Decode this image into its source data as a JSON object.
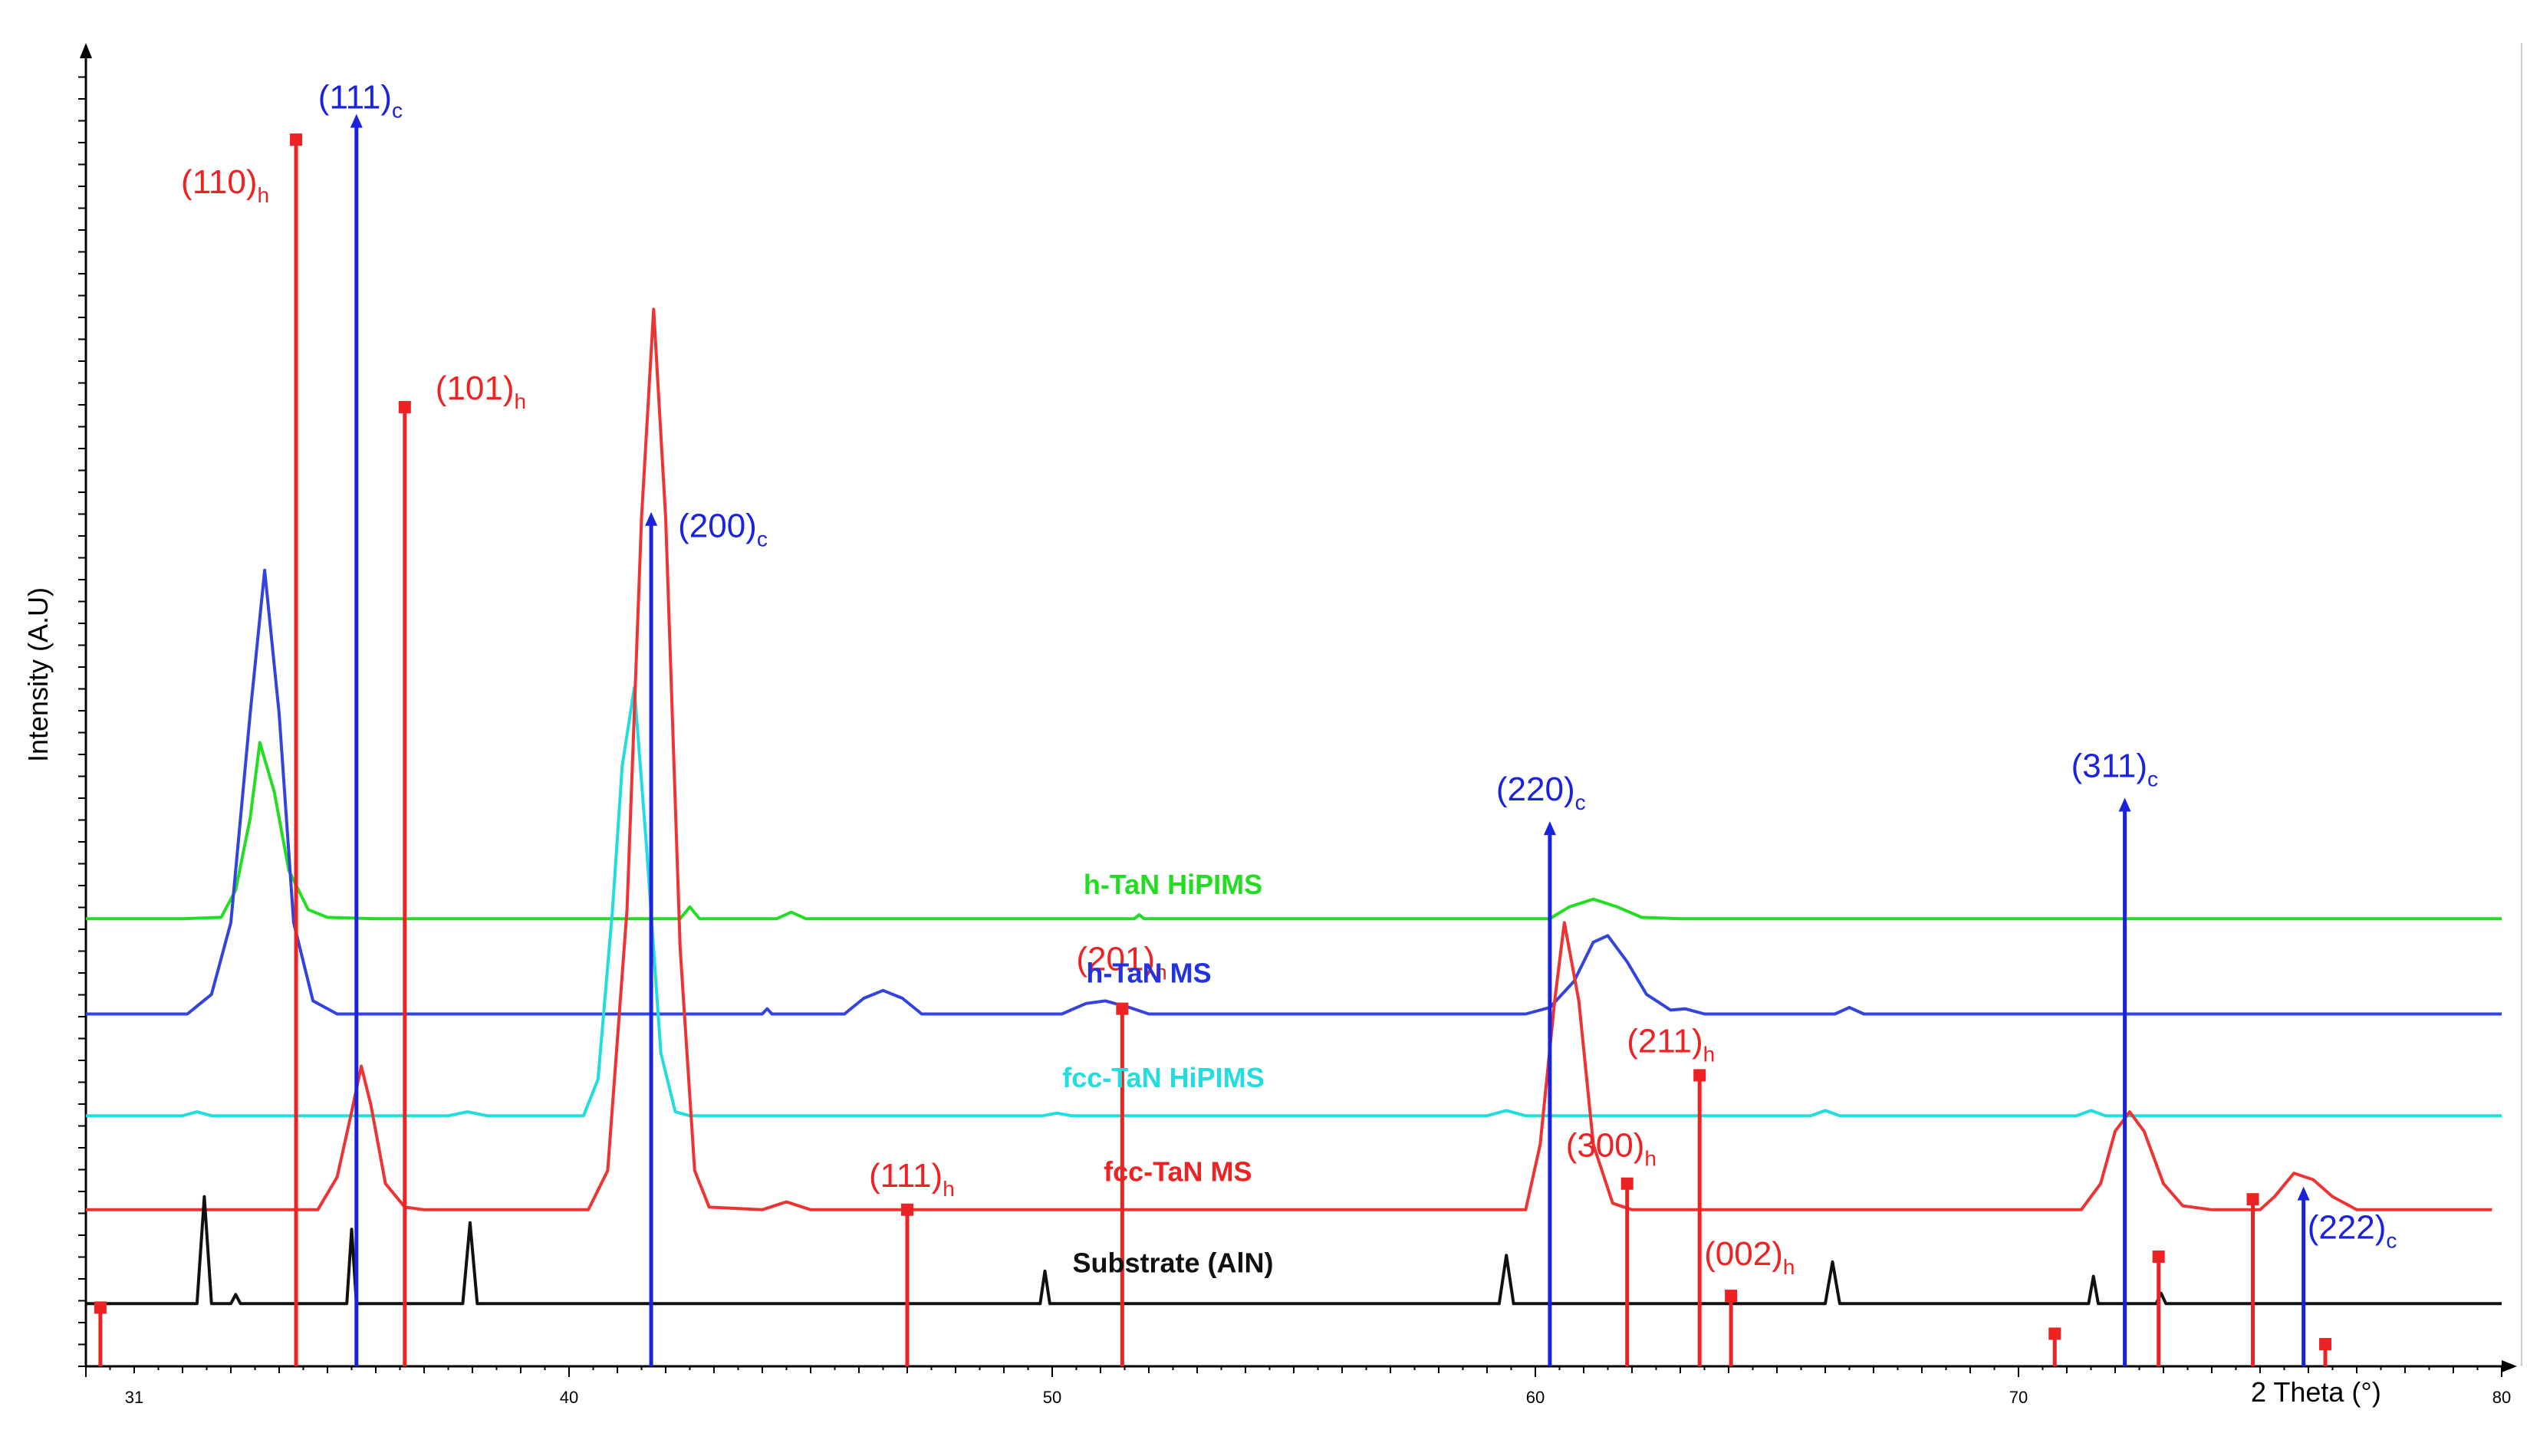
{
  "chart_data": {
    "type": "line",
    "title": "",
    "xlabel": "2 Theta (°)",
    "ylabel": "Intensity (A.U)",
    "xlim": [
      30,
      80
    ],
    "xticks": [
      31,
      40,
      50,
      60,
      70,
      80
    ],
    "ylim": [
      0,
      100
    ],
    "grid": false,
    "series": [
      {
        "name": "h-TaN HiPIMS",
        "color": "#22dd22",
        "points": [
          [
            30,
            34.3
          ],
          [
            32,
            34.3
          ],
          [
            32.8,
            34.4
          ],
          [
            33.1,
            36.5
          ],
          [
            33.4,
            42
          ],
          [
            33.6,
            47.8
          ],
          [
            33.9,
            44
          ],
          [
            34.2,
            38
          ],
          [
            34.6,
            35
          ],
          [
            35,
            34.4
          ],
          [
            36,
            34.3
          ],
          [
            42.3,
            34.3
          ],
          [
            42.5,
            35.2
          ],
          [
            42.7,
            34.3
          ],
          [
            44.3,
            34.3
          ],
          [
            44.6,
            34.8
          ],
          [
            44.9,
            34.3
          ],
          [
            51.7,
            34.3
          ],
          [
            51.8,
            34.6
          ],
          [
            51.9,
            34.3
          ],
          [
            60.3,
            34.3
          ],
          [
            60.7,
            35.2
          ],
          [
            61.2,
            35.8
          ],
          [
            61.7,
            35.2
          ],
          [
            62.2,
            34.4
          ],
          [
            63,
            34.3
          ],
          [
            80,
            34.3
          ]
        ]
      },
      {
        "name": "h-TaN MS",
        "color": "#3344dd",
        "points": [
          [
            30,
            27
          ],
          [
            32.1,
            27
          ],
          [
            32.6,
            28.5
          ],
          [
            33,
            34
          ],
          [
            33.4,
            50
          ],
          [
            33.7,
            61
          ],
          [
            34,
            50
          ],
          [
            34.3,
            34
          ],
          [
            34.7,
            28
          ],
          [
            35.2,
            27
          ],
          [
            44,
            27
          ],
          [
            44.1,
            27.4
          ],
          [
            44.2,
            27
          ],
          [
            45.7,
            27
          ],
          [
            46.1,
            28.2
          ],
          [
            46.5,
            28.8
          ],
          [
            46.9,
            28.2
          ],
          [
            47.3,
            27
          ],
          [
            50.2,
            27
          ],
          [
            50.7,
            27.8
          ],
          [
            51.1,
            28
          ],
          [
            51.6,
            27.5
          ],
          [
            52,
            27
          ],
          [
            59.8,
            27
          ],
          [
            60.3,
            27.5
          ],
          [
            60.8,
            29.5
          ],
          [
            61.2,
            32.5
          ],
          [
            61.5,
            33
          ],
          [
            61.9,
            31
          ],
          [
            62.3,
            28.5
          ],
          [
            62.8,
            27.3
          ],
          [
            63.1,
            27.4
          ],
          [
            63.5,
            27
          ],
          [
            66.2,
            27
          ],
          [
            66.5,
            27.5
          ],
          [
            66.8,
            27
          ],
          [
            80,
            27
          ]
        ]
      },
      {
        "name": "fcc-TaN HiPIMS",
        "color": "#22dddd",
        "points": [
          [
            30,
            19.2
          ],
          [
            32,
            19.2
          ],
          [
            32.3,
            19.5
          ],
          [
            32.6,
            19.2
          ],
          [
            37.5,
            19.2
          ],
          [
            37.9,
            19.5
          ],
          [
            38.3,
            19.2
          ],
          [
            40.3,
            19.2
          ],
          [
            40.6,
            22
          ],
          [
            40.9,
            35
          ],
          [
            41.1,
            46
          ],
          [
            41.35,
            52
          ],
          [
            41.6,
            40
          ],
          [
            41.9,
            24
          ],
          [
            42.2,
            19.5
          ],
          [
            42.5,
            19.2
          ],
          [
            49.8,
            19.2
          ],
          [
            50.1,
            19.4
          ],
          [
            50.4,
            19.2
          ],
          [
            59,
            19.2
          ],
          [
            59.4,
            19.6
          ],
          [
            59.8,
            19.2
          ],
          [
            65.7,
            19.2
          ],
          [
            66,
            19.6
          ],
          [
            66.3,
            19.2
          ],
          [
            71.2,
            19.2
          ],
          [
            71.5,
            19.6
          ],
          [
            71.8,
            19.2
          ],
          [
            80,
            19.2
          ]
        ]
      },
      {
        "name": "fcc-TaN MS",
        "color": "#ee3333",
        "points": [
          [
            30,
            12
          ],
          [
            34.8,
            12
          ],
          [
            35.2,
            14.5
          ],
          [
            35.5,
            19.5
          ],
          [
            35.7,
            23
          ],
          [
            35.9,
            20
          ],
          [
            36.2,
            14
          ],
          [
            36.6,
            12.2
          ],
          [
            37,
            12
          ],
          [
            40.4,
            12
          ],
          [
            40.8,
            15
          ],
          [
            41.2,
            35
          ],
          [
            41.5,
            65
          ],
          [
            41.75,
            81
          ],
          [
            42,
            65
          ],
          [
            42.3,
            32
          ],
          [
            42.6,
            15
          ],
          [
            42.9,
            12.2
          ],
          [
            44,
            12
          ],
          [
            44.5,
            12.6
          ],
          [
            45,
            12
          ],
          [
            59.8,
            12
          ],
          [
            60.1,
            17
          ],
          [
            60.4,
            28
          ],
          [
            60.6,
            34
          ],
          [
            60.9,
            28
          ],
          [
            61.2,
            17
          ],
          [
            61.6,
            12.5
          ],
          [
            62,
            12
          ],
          [
            71.3,
            12
          ],
          [
            71.7,
            14
          ],
          [
            72,
            18
          ],
          [
            72.3,
            19.5
          ],
          [
            72.6,
            18
          ],
          [
            73,
            14
          ],
          [
            73.4,
            12.3
          ],
          [
            74,
            12
          ],
          [
            75,
            12
          ],
          [
            75.3,
            13
          ],
          [
            75.7,
            14.8
          ],
          [
            76.1,
            14.3
          ],
          [
            76.5,
            13
          ],
          [
            77,
            12
          ],
          [
            79.8,
            12
          ]
        ]
      },
      {
        "name": "Substrate (AlN)",
        "color": "#111111",
        "points": [
          [
            30,
            4.8
          ],
          [
            32.3,
            4.8
          ],
          [
            32.45,
            13
          ],
          [
            32.6,
            4.8
          ],
          [
            33.0,
            4.8
          ],
          [
            33.1,
            5.5
          ],
          [
            33.2,
            4.8
          ],
          [
            35.4,
            4.8
          ],
          [
            35.5,
            10.5
          ],
          [
            35.6,
            4.8
          ],
          [
            37.8,
            4.8
          ],
          [
            37.95,
            11
          ],
          [
            38.1,
            4.8
          ],
          [
            49.75,
            4.8
          ],
          [
            49.85,
            7.3
          ],
          [
            49.95,
            4.8
          ],
          [
            59.25,
            4.8
          ],
          [
            59.4,
            8.5
          ],
          [
            59.55,
            4.8
          ],
          [
            66,
            4.8
          ],
          [
            66.15,
            8
          ],
          [
            66.3,
            4.8
          ],
          [
            71.45,
            4.8
          ],
          [
            71.55,
            6.9
          ],
          [
            71.65,
            4.8
          ],
          [
            72.85,
            4.8
          ],
          [
            72.95,
            5.6
          ],
          [
            73.05,
            4.8
          ],
          [
            80,
            4.8
          ]
        ]
      }
    ],
    "stick_patterns": [
      {
        "phase": "hexagonal",
        "color": "#ee2222",
        "sticks": [
          {
            "x": 30.3,
            "y": 4.5,
            "label": ""
          },
          {
            "x": 34.35,
            "y": 94,
            "label": "(110)",
            "sub": "h"
          },
          {
            "x": 36.6,
            "y": 73.5,
            "label": "(101)",
            "sub": "h"
          },
          {
            "x": 47.0,
            "y": 12,
            "label": "(111)",
            "sub": "h"
          },
          {
            "x": 51.45,
            "y": 27.4,
            "label": "(201)",
            "sub": "h"
          },
          {
            "x": 61.9,
            "y": 14,
            "label": "(300)",
            "sub": "h"
          },
          {
            "x": 63.4,
            "y": 22.3,
            "label": "(211)",
            "sub": "h"
          },
          {
            "x": 64.05,
            "y": 5.4,
            "label": "(002)",
            "sub": "h"
          },
          {
            "x": 70.75,
            "y": 2.5,
            "label": ""
          },
          {
            "x": 72.9,
            "y": 8.4,
            "label": ""
          },
          {
            "x": 74.85,
            "y": 12.8,
            "label": ""
          },
          {
            "x": 76.35,
            "y": 1.7,
            "label": ""
          }
        ]
      },
      {
        "phase": "cubic",
        "color": "#1a22dd",
        "sticks": [
          {
            "x": 35.6,
            "y": 95.5,
            "label": "(111)",
            "sub": "c"
          },
          {
            "x": 41.7,
            "y": 65,
            "label": "(200)",
            "sub": "c"
          },
          {
            "x": 60.3,
            "y": 41.3,
            "label": "(220)",
            "sub": "c"
          },
          {
            "x": 72.2,
            "y": 43.1,
            "label": "(311)",
            "sub": "c"
          },
          {
            "x": 75.9,
            "y": 13.3,
            "label": "(222)",
            "sub": "c"
          }
        ]
      }
    ],
    "series_labels": [
      {
        "text": "h-TaN HiPIMS",
        "color": "#22dd22"
      },
      {
        "text": "h-TaN MS",
        "color": "#2233dd"
      },
      {
        "text": "fcc-TaN HiPIMS",
        "color": "#22dddd"
      },
      {
        "text": "fcc-TaN MS",
        "color": "#ee2222"
      },
      {
        "text": "Substrate (AlN)",
        "color": "#111111"
      }
    ]
  }
}
